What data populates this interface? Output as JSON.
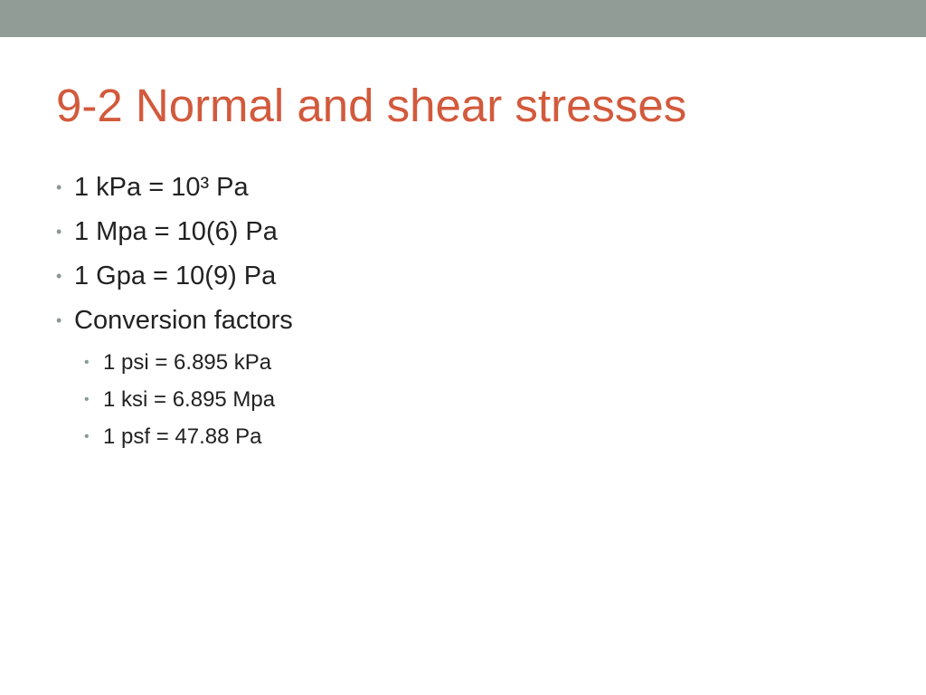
{
  "slide": {
    "title": "9-2 Normal and shear stresses",
    "bullets": [
      {
        "level": 1,
        "text": "1 kPa = 10³ Pa"
      },
      {
        "level": 1,
        "text": "1 Mpa = 10(6) Pa"
      },
      {
        "level": 1,
        "text": "1 Gpa = 10(9) Pa"
      },
      {
        "level": 1,
        "text": "Conversion factors"
      },
      {
        "level": 2,
        "text": "1 psi = 6.895 kPa"
      },
      {
        "level": 2,
        "text": "1 ksi = 6.895 Mpa"
      },
      {
        "level": 2,
        "text": "1 psf = 47.88 Pa"
      }
    ],
    "bullet_glyph": "•"
  },
  "colors": {
    "top_band": "#919c96",
    "title": "#d25a3c",
    "body_text": "#222222",
    "bullet_marker": "#8a9990"
  }
}
